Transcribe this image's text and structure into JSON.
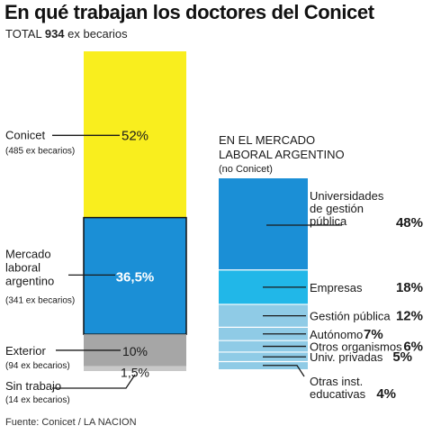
{
  "title": "En qué trabajan los doctores del Conicet",
  "total": {
    "label": "TOTAL",
    "value": "934",
    "unit": "ex becarios"
  },
  "source": "Fuente: Conicet / LA NACION",
  "colors": {
    "conicet": "#f9ee1e",
    "mercado": "#1b8fd6",
    "exterior": "#a6a6a6",
    "sin_trabajo": "#c8c8c8",
    "universidades": "#1b8fd6",
    "empresas": "#21b7e8",
    "otros": "#8fcbe6",
    "border": "#111111"
  },
  "chart_data": [
    {
      "type": "bar",
      "stacked": true,
      "total": 934,
      "segments": [
        {
          "label": "Conicet",
          "sublabel": "(485 ex becarios)",
          "percent": 52,
          "percent_text": "52%",
          "count": 485
        },
        {
          "label": "Mercado laboral argentino",
          "label_lines": [
            "Mercado",
            "laboral",
            "argentino"
          ],
          "sublabel": "(341 ex becarios)",
          "percent": 36.5,
          "percent_text": "36,5%",
          "count": 341
        },
        {
          "label": "Exterior",
          "sublabel": "(94 ex becarios)",
          "percent": 10,
          "percent_text": "10%",
          "count": 94
        },
        {
          "label": "Sin trabajo",
          "sublabel": "(14 ex becarios)",
          "percent": 1.5,
          "percent_text": "1,5%",
          "count": 14
        }
      ]
    },
    {
      "type": "bar",
      "stacked": true,
      "title_lines": [
        "EN EL MERCADO",
        "LABORAL ARGENTINO"
      ],
      "subtitle": "(no Conicet)",
      "segments": [
        {
          "label": "Universidades de gestión pública",
          "label_lines": [
            "Universidades",
            "de gestión",
            "pública"
          ],
          "percent": 48,
          "percent_text": "48%"
        },
        {
          "label": "Empresas",
          "label_lines": [
            "Empresas"
          ],
          "percent": 18,
          "percent_text": "18%"
        },
        {
          "label": "Gestión pública",
          "label_lines": [
            "Gestión pública"
          ],
          "percent": 12,
          "percent_text": "12%"
        },
        {
          "label": "Autónomo",
          "label_lines": [
            "Autónomo"
          ],
          "percent": 7,
          "percent_text": "7%"
        },
        {
          "label": "Otros organismos",
          "label_lines": [
            "Otros organismos"
          ],
          "percent": 6,
          "percent_text": "6%"
        },
        {
          "label": "Univ. privadas",
          "label_lines": [
            "Univ. privadas"
          ],
          "percent": 5,
          "percent_text": "5%"
        },
        {
          "label": "Otras inst. educativas",
          "label_lines": [
            "Otras inst.",
            "educativas"
          ],
          "percent": 4,
          "percent_text": "4%"
        }
      ]
    }
  ]
}
